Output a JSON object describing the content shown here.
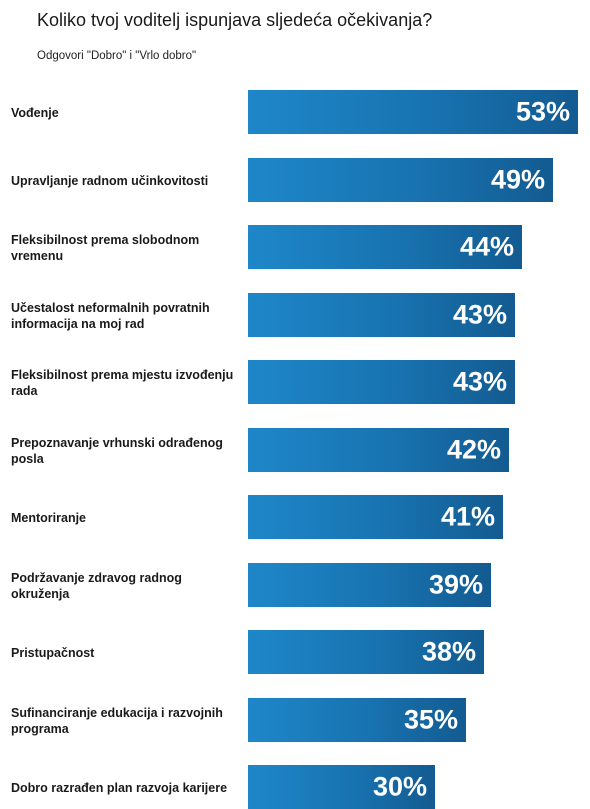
{
  "chart_data": {
    "type": "bar",
    "orientation": "horizontal",
    "title": "Koliko tvoj voditelj ispunjava sljedeća očekivanja?",
    "subtitle": "Odgovori \"Dobro\" i \"Vrlo dobro\"",
    "categories": [
      "Vođenje",
      "Upravljanje radnom učinkovitosti",
      "Fleksibilnost prema slobodnom vremenu",
      "Učestalost neformalnih povratnih informacija na moj rad",
      "Fleksibilnost prema mjestu izvođenju rada",
      "Prepoznavanje vrhunski odrađenog posla",
      "Mentoriranje",
      "Podržavanje zdravog radnog okruženja",
      "Pristupačnost",
      "Sufinanciranje edukacija i razvojnih programa",
      "Dobro razrađen plan razvoja karijere"
    ],
    "values": [
      53,
      49,
      44,
      43,
      43,
      42,
      41,
      39,
      38,
      35,
      30
    ],
    "value_labels": [
      "53%",
      "49%",
      "44%",
      "43%",
      "43%",
      "42%",
      "41%",
      "39%",
      "38%",
      "35%",
      "30%"
    ],
    "unit": "%",
    "colors": {
      "bar_start": "#1e87c9",
      "bar_end": "#135b91",
      "label_text": "#ffffff"
    },
    "grid": false,
    "legend": "none"
  }
}
